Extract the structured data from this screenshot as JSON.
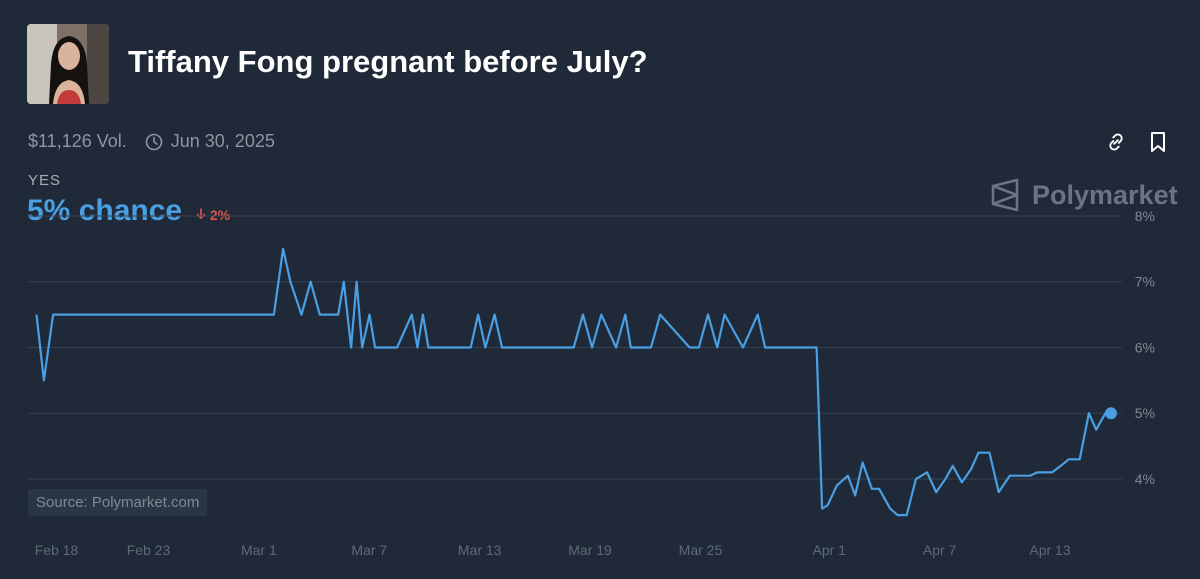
{
  "market": {
    "title": "Tiffany Fong pregnant before July?",
    "volume": "$11,126 Vol.",
    "end_date": "Jun 30, 2025",
    "outcome_label": "YES",
    "chance_text": "5% chance",
    "change_text": "2%",
    "brand": "Polymarket",
    "source": "Source: Polymarket.com"
  },
  "icons": {
    "avatar": "avatar-photo",
    "clock": "clock-icon",
    "link": "link-icon",
    "bookmark": "bookmark-icon",
    "brand_logo": "polymarket-logo-icon",
    "change_arrow": "arrow-down-icon"
  },
  "colors": {
    "background": "#1f2937",
    "line": "#4a9fe3",
    "negative": "#e0574f",
    "grid": "#374151",
    "muted": "#8c96a3"
  },
  "chart_data": {
    "type": "line",
    "title": "",
    "xlabel": "",
    "ylabel": "",
    "x_ticks": [
      "Feb 18",
      "Feb 23",
      "Mar 1",
      "Mar 7",
      "Mar 13",
      "Mar 19",
      "Mar 25",
      "Apr 1",
      "Apr 7",
      "Apr 13"
    ],
    "x_tick_days": [
      0,
      5,
      11,
      17,
      23,
      29,
      35,
      42,
      48,
      54
    ],
    "y_ticks": [
      "4%",
      "5%",
      "6%",
      "7%",
      "8%"
    ],
    "ylim": [
      3.3,
      8.0
    ],
    "xlim": [
      -0.3,
      59.0
    ],
    "grid": "horizontal",
    "series": [
      {
        "name": "",
        "x": [
          0,
          0.4,
          0.9,
          12.9,
          13.4,
          13.8,
          14.4,
          14.9,
          15.4,
          16.4,
          16.7,
          17.1,
          17.4,
          17.7,
          18.1,
          18.4,
          19.0,
          19.6,
          20.4,
          20.7,
          21.0,
          21.3,
          22.0,
          23.6,
          24.0,
          24.4,
          24.9,
          25.3,
          26.8,
          27.3,
          27.8,
          29.2,
          29.7,
          30.2,
          30.7,
          31.5,
          32.0,
          32.3,
          33.4,
          33.9,
          35.5,
          36.0,
          36.5,
          37.0,
          37.4,
          38.4,
          39.2,
          39.6,
          42.4,
          42.7,
          43.0,
          43.5,
          44.1,
          44.5,
          44.9,
          45.4,
          45.8,
          46.4,
          46.8,
          47.3,
          47.8,
          48.4,
          48.9,
          49.4,
          49.8,
          50.3,
          50.8,
          51.2,
          51.8,
          52.3,
          52.9,
          53.4,
          54.0,
          54.4,
          55.2,
          55.9,
          56.1,
          56.7,
          57.2,
          57.6,
          58.1,
          58.4
        ],
        "y": [
          6.5,
          5.5,
          6.5,
          6.5,
          7.5,
          7.0,
          6.5,
          7.0,
          6.5,
          6.5,
          7.0,
          6.0,
          7.0,
          6.0,
          6.5,
          6.0,
          6.0,
          6.0,
          6.5,
          6.0,
          6.5,
          6.0,
          6.0,
          6.0,
          6.5,
          6.0,
          6.5,
          6.0,
          6.0,
          6.0,
          6.0,
          6.0,
          6.5,
          6.0,
          6.5,
          6.0,
          6.5,
          6.0,
          6.0,
          6.5,
          6.0,
          6.0,
          6.5,
          6.0,
          6.5,
          6.0,
          6.5,
          6.0,
          6.0,
          3.55,
          3.6,
          3.9,
          4.05,
          3.75,
          4.25,
          3.85,
          3.85,
          3.55,
          3.45,
          3.45,
          4.0,
          4.1,
          3.8,
          4.0,
          4.2,
          3.95,
          4.15,
          4.4,
          4.4,
          3.8,
          4.05,
          4.05,
          4.05,
          4.1,
          4.1,
          4.25,
          4.3,
          4.3,
          5.0,
          4.75,
          5.0,
          5.0
        ]
      }
    ],
    "last_value": 5.0
  }
}
